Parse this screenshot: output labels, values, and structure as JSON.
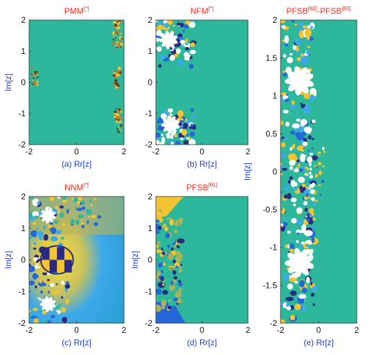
{
  "colors": {
    "teal": "#2db79b",
    "yellow": "#f4c431",
    "blue": "#2467d9",
    "navy": "#2b2a82",
    "sky": "#3ea9e9",
    "olive": "#a8b35a",
    "orange": "#d9761f",
    "white": "#ffffff",
    "title_red": "#ff2a1a",
    "label_blue": "#1a3bd4"
  },
  "chart_data": [
    {
      "id": "a",
      "type": "heatmap",
      "title": "PMM",
      "title_sup": "[*]",
      "caption": "(a)",
      "xlabel": "Rr[z]",
      "ylabel": "Im[z]",
      "xlim": [
        -2,
        2
      ],
      "ylim": [
        -2,
        2
      ],
      "xticks": [
        -2,
        0,
        2
      ],
      "yticks": [
        -2,
        -1,
        0,
        1,
        2
      ],
      "background_color": "teal",
      "regions": "thin orange/yellow fractal strips near x=-1.8 and x=1.6-1.9"
    },
    {
      "id": "b",
      "type": "heatmap",
      "title": "NFM",
      "title_sup": "[*]",
      "caption": "(b)",
      "xlabel": "Rr[z]",
      "ylabel": "",
      "xlim": [
        -2,
        2
      ],
      "ylim": [
        -2,
        2
      ],
      "xticks": [
        -2,
        0,
        2
      ],
      "yticks": [
        -2,
        -1,
        0,
        1,
        2
      ],
      "background_color": "teal",
      "regions": "white/yellow/blue fractal lobes at left edge near y=1.5 and y=-1.5"
    },
    {
      "id": "c",
      "type": "heatmap",
      "title": "NNM",
      "title_sup": "[*]",
      "caption": "(c)",
      "xlabel": "Rr[z]",
      "ylabel": "Im[z]",
      "xlim": [
        -2,
        2
      ],
      "ylim": [
        -2,
        2
      ],
      "xticks": [
        -2,
        0,
        2
      ],
      "yticks": [
        -2,
        -1,
        0,
        1,
        2
      ],
      "background_color": "gradient",
      "regions": "radial yellow-olive-sky gradient with navy/yellow checker near origin"
    },
    {
      "id": "d",
      "type": "heatmap",
      "title": "PFSB",
      "title_sup": "[θ1]",
      "caption": "(d)",
      "xlabel": "Rr[z]",
      "ylabel": "Im[z]",
      "xlim": [
        -2,
        2
      ],
      "ylim": [
        -2,
        2
      ],
      "xticks": [
        -2,
        0,
        2
      ],
      "yticks": [
        -2,
        -1,
        0,
        1,
        2
      ],
      "background_color": "teal",
      "regions": "yellow/blue/olive fractal band along left edge"
    },
    {
      "id": "e",
      "type": "heatmap",
      "title": "PFSB[θ2]-PFSB[θ3]",
      "title_parts": [
        "PFSB",
        "[θ2]",
        "-PFSB",
        "[θ3]"
      ],
      "caption": "(e)",
      "xlabel": "Rr[z]",
      "ylabel": "Im[z]",
      "xlim": [
        -2,
        2
      ],
      "ylim": [
        -2,
        2
      ],
      "xticks": [
        -2,
        0,
        2
      ],
      "yticks": [
        -2,
        -1.5,
        -1,
        -0.5,
        0,
        0.5,
        1,
        1.5,
        2
      ],
      "background_color": "teal",
      "regions": "white/blue/yellow fractal on left half, teal on right"
    }
  ]
}
